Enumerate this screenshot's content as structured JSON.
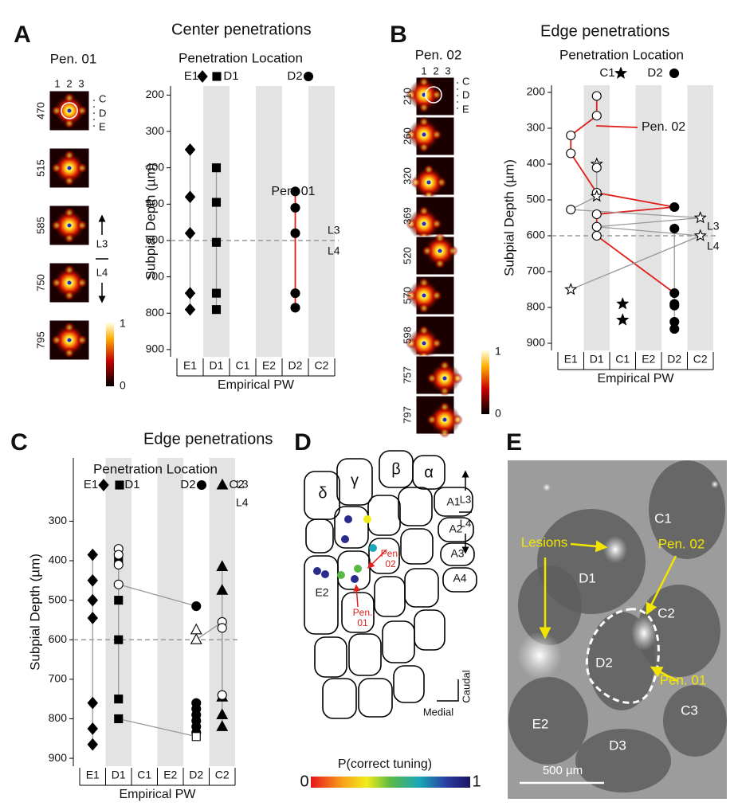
{
  "panel_letters": [
    "A",
    "B",
    "C",
    "D",
    "E"
  ],
  "heatmaps": [
    {
      "title": "Pen. 01",
      "columns": [
        "1",
        "2",
        "3"
      ],
      "rows": [
        "C",
        "D",
        "E"
      ],
      "depths": [
        470,
        515,
        585,
        750,
        795
      ],
      "layers": [
        "L3",
        "L4"
      ],
      "colorbar_ticks": [
        0,
        1
      ]
    },
    {
      "title": "Pen. 02",
      "columns": [
        "1",
        "2",
        "3"
      ],
      "rows": [
        "C",
        "D",
        "E"
      ],
      "depths": [
        210,
        260,
        320,
        369,
        520,
        570,
        598,
        757,
        797
      ],
      "layers": [
        "L3",
        "L4"
      ],
      "colorbar_ticks": [
        0,
        1
      ]
    }
  ],
  "chart_data": [
    {
      "type": "scatter",
      "title": "Center penetrations",
      "subtitle": "Penetration Location",
      "xlabel": "Empirical PW",
      "ylabel": "Subpial Depth (µm)",
      "categories": [
        "E1",
        "D1",
        "C1",
        "E2",
        "D2",
        "C2"
      ],
      "shaded": [
        "D1",
        "E2",
        "C2"
      ],
      "ylim": [
        175,
        920
      ],
      "y_inverted": true,
      "yticks": [
        200,
        300,
        400,
        500,
        600,
        700,
        800,
        900
      ],
      "hline": 600,
      "annotations": [
        "Pen. 01",
        "L3",
        "L4"
      ],
      "series": [
        {
          "name": "E1",
          "marker": "diamond",
          "fill": "#000",
          "line": "#999",
          "x": [
            "E1",
            "E1",
            "E1",
            "E1",
            "E1"
          ],
          "values": [
            350,
            480,
            580,
            745,
            790
          ]
        },
        {
          "name": "D1",
          "marker": "square",
          "fill": "#000",
          "line": "#999",
          "x": [
            "D1",
            "D1",
            "D1",
            "D1",
            "D1"
          ],
          "values": [
            400,
            495,
            605,
            745,
            790
          ]
        },
        {
          "name": "D2",
          "marker": "circle",
          "fill": "#000",
          "line": "#e0201b",
          "x": [
            "D2",
            "D2",
            "D2",
            "D2",
            "D2"
          ],
          "values": [
            465,
            510,
            580,
            745,
            785
          ]
        }
      ]
    },
    {
      "type": "scatter",
      "title": "Edge penetrations",
      "subtitle": "Penetration Location",
      "xlabel": "Empirical PW",
      "ylabel": "Subpial Depth (µm)",
      "categories": [
        "E1",
        "D1",
        "C1",
        "E2",
        "D2",
        "C2"
      ],
      "shaded": [
        "D1",
        "E2",
        "C2"
      ],
      "ylim": [
        180,
        920
      ],
      "y_inverted": true,
      "yticks": [
        200,
        300,
        400,
        500,
        600,
        700,
        800,
        900
      ],
      "hline": 600,
      "annotations": [
        "Pen. 02",
        "L3",
        "L4"
      ],
      "series": [
        {
          "name": "C1",
          "marker": "star",
          "fill": "#000",
          "x": [
            "C1",
            "C1"
          ],
          "values": [
            790,
            835
          ]
        },
        {
          "name": "D2",
          "marker": "circle",
          "fill": "#000",
          "line": "#999",
          "x": [
            "D2",
            "D2",
            "D2",
            "D2",
            "D2"
          ],
          "values": [
            580,
            790,
            795,
            840,
            860
          ]
        },
        {
          "marker": "circle",
          "fill": [
            "#fff",
            "#fff",
            "#fff",
            "#fff",
            "#fff",
            "#000",
            "#fff",
            "#fff",
            "#000"
          ],
          "line": "#e0201b",
          "x": [
            "D1",
            "D1",
            "E1",
            "E1",
            "D1",
            "D2",
            "D1",
            "D1",
            "D2"
          ],
          "values": [
            210,
            265,
            320,
            370,
            480,
            520,
            540,
            600,
            760
          ]
        },
        {
          "marker": [
            "star",
            "circle",
            "star",
            "circle",
            "star",
            "circle",
            "star",
            "star"
          ],
          "fill": "#fff",
          "line": "#999",
          "x": [
            "D1",
            "D1",
            "D1",
            "E1",
            "C2",
            "D1",
            "C2",
            "E1"
          ],
          "values": [
            400,
            410,
            490,
            527,
            550,
            575,
            600,
            750
          ]
        }
      ]
    },
    {
      "type": "scatter",
      "title": "Edge penetrations",
      "subtitle": "Penetration Location",
      "xlabel": "Empirical PW",
      "ylabel": "Subpial Depth (µm)",
      "categories": [
        "E1",
        "D1",
        "C1",
        "E2",
        "D2",
        "C2"
      ],
      "shaded": [
        "D1",
        "E2",
        "C2"
      ],
      "ylim": [
        140,
        920
      ],
      "y_inverted": true,
      "yticks": [
        300,
        400,
        500,
        600,
        700,
        800,
        900
      ],
      "hline": 600,
      "annotations": [
        "L3",
        "L4"
      ],
      "series": [
        {
          "name": "E1",
          "marker": "diamond",
          "fill": "#000",
          "line": "#999",
          "x": [
            "E1",
            "E1",
            "E1",
            "E1",
            "E1",
            "E1",
            "E1"
          ],
          "values": [
            385,
            450,
            500,
            545,
            760,
            825,
            865
          ]
        },
        {
          "name": "D1",
          "marker": "square",
          "fill": "#000",
          "line": "#999",
          "x": [
            "D1",
            "D1",
            "D1",
            "D1"
          ],
          "values": [
            395,
            500,
            600,
            750
          ]
        },
        {
          "name": "D2",
          "marker": "circle",
          "fill": "#000",
          "x": [
            "D2",
            "D2",
            "D2",
            "D2",
            "D2",
            "D2"
          ],
          "values": [
            760,
            775,
            790,
            805,
            820,
            835
          ]
        },
        {
          "name": "C2",
          "marker": "triangle",
          "fill": "#000",
          "line": "#999",
          "x": [
            "C2",
            "C2",
            "C2",
            "C2",
            "C2"
          ],
          "values": [
            415,
            475,
            745,
            790,
            820
          ]
        },
        {
          "marker": "circle",
          "fill": [
            "#fff",
            "#fff",
            "#fff",
            "#fff",
            "#000"
          ],
          "line": "#999",
          "x": [
            "D1",
            "D1",
            "D1",
            "D1",
            "D2"
          ],
          "values": [
            370,
            385,
            410,
            460,
            515
          ]
        },
        {
          "marker": [
            "triangle",
            "triangle",
            "circle",
            "circle",
            "circle"
          ],
          "fill": "#fff",
          "line": "#999",
          "x": [
            "D2",
            "D2",
            "C2",
            "C2",
            "C2"
          ],
          "values": [
            575,
            600,
            555,
            570,
            740
          ]
        },
        {
          "marker": "square",
          "fill": [
            "#000",
            "#fff"
          ],
          "line": "#999",
          "x": [
            "D1",
            "D2"
          ],
          "values": [
            800,
            845
          ]
        }
      ]
    }
  ],
  "panel_d": {
    "barrels": [
      "γ",
      "β",
      "α",
      "δ",
      "A1",
      "A2",
      "A3",
      "A4",
      "E2"
    ],
    "pen_labels": [
      [
        "Pen.",
        "01"
      ],
      [
        "Pen.",
        "02"
      ]
    ],
    "axes": [
      "Caudal",
      "Medial"
    ],
    "colorbar_title": "P(correct tuning)",
    "colorbar_ticks": [
      0,
      1
    ]
  },
  "panel_e": {
    "labels": [
      "C1",
      "D1",
      "C2",
      "D2",
      "C3",
      "E2",
      "D3"
    ],
    "annotations": [
      "Lesions",
      "Pen. 02",
      "Pen. 01"
    ],
    "scale_bar": "500 µm"
  }
}
